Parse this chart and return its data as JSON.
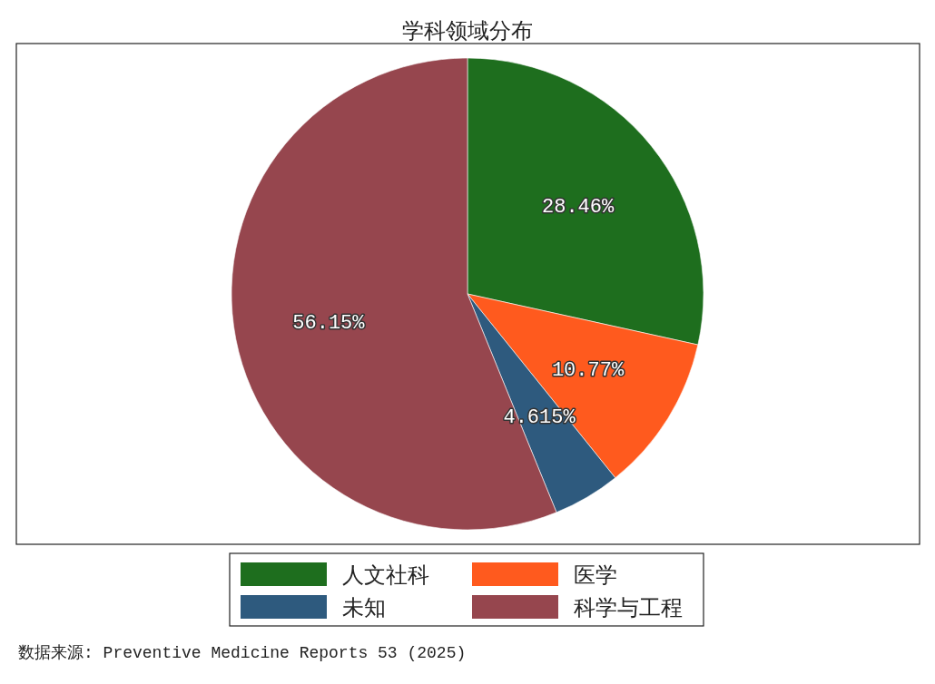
{
  "chart_data": {
    "type": "pie",
    "title": "学科领域分布",
    "categories": [
      "人文社科",
      "医学",
      "未知",
      "科学与工程"
    ],
    "values": [
      28.46,
      10.77,
      4.615,
      56.15
    ],
    "colors": [
      "#1e6e1e",
      "#ff5a1e",
      "#2e5a7e",
      "#96464e"
    ],
    "value_labels": [
      "28.46%",
      "10.77%",
      "4.615%",
      "56.15%"
    ],
    "legend": "bottom",
    "annotations": [
      "数据来源: Preventive Medicine Reports 53 (2025)"
    ]
  }
}
